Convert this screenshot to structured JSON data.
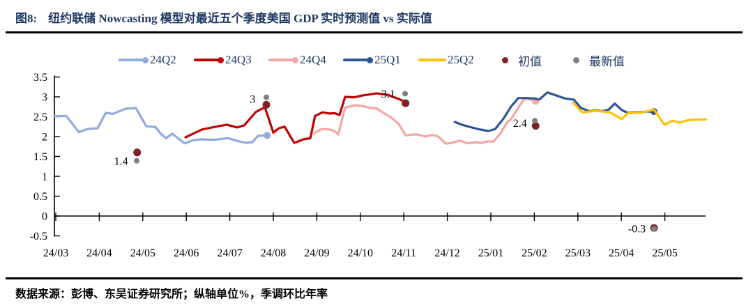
{
  "header": {
    "figure_label": "图8:",
    "title": "纽约联储 Nowcasting 模型对最近五个季度美国 GDP 实时预测值 vs 实际值"
  },
  "footer": {
    "source_note": "数据来源：彭博、东吴证券研究所；纵轴单位%，季调环比年率"
  },
  "legend": {
    "items": [
      {
        "label": "24Q2",
        "color": "#8FAADC",
        "type": "line-dot"
      },
      {
        "label": "24Q3",
        "color": "#C00000",
        "type": "line-dot"
      },
      {
        "label": "24Q4",
        "color": "#F5A6A2",
        "type": "line-dot"
      },
      {
        "label": "25Q1",
        "color": "#2E5597",
        "type": "line-dot"
      },
      {
        "label": "25Q2",
        "color": "#FFC000",
        "type": "line"
      },
      {
        "label": "初值",
        "color": "#7E2222",
        "type": "dot"
      },
      {
        "label": "最新值",
        "color": "#7F7F7F",
        "type": "dot"
      }
    ]
  },
  "chart_data": {
    "type": "line",
    "title": "纽约联储 Nowcasting 模型对最近五个季度美国 GDP 实时预测值 vs 实际值",
    "ylabel": "纵轴单位%，季调环比年率",
    "ylim": [
      -0.5,
      3.5
    ],
    "yticks": [
      3.5,
      3,
      2.5,
      2,
      1.5,
      1,
      0.5,
      0,
      -0.5
    ],
    "x_categories": [
      "24/03",
      "24/04",
      "24/05",
      "24/06",
      "24/07",
      "24/08",
      "24/09",
      "24/10",
      "24/11",
      "24/12",
      "25/01",
      "25/02",
      "25/03",
      "25/04",
      "25/05"
    ],
    "grid": false,
    "legend_position": "top",
    "series": [
      {
        "name": "24Q2",
        "color": "#8FAADC",
        "end_dot": true,
        "points": [
          [
            -0.03,
            2.51
          ],
          [
            0.24,
            2.52
          ],
          [
            0.53,
            2.11
          ],
          [
            0.72,
            2.19
          ],
          [
            0.96,
            2.21
          ],
          [
            1.15,
            2.6
          ],
          [
            1.31,
            2.57
          ],
          [
            1.6,
            2.7
          ],
          [
            1.84,
            2.72
          ],
          [
            2.08,
            2.26
          ],
          [
            2.29,
            2.24
          ],
          [
            2.4,
            2.09
          ],
          [
            2.53,
            1.96
          ],
          [
            2.68,
            2.07
          ],
          [
            2.96,
            1.83
          ],
          [
            3.16,
            1.91
          ],
          [
            3.32,
            1.93
          ],
          [
            3.64,
            1.92
          ],
          [
            3.8,
            1.94
          ],
          [
            3.96,
            1.96
          ],
          [
            4.21,
            1.88
          ],
          [
            4.38,
            1.84
          ],
          [
            4.52,
            1.86
          ],
          [
            4.65,
            2.02
          ],
          [
            4.86,
            2.03
          ]
        ]
      },
      {
        "name": "24Q4",
        "color": "#F5A6A2",
        "end_dot": true,
        "points": [
          [
            5.93,
            2.08
          ],
          [
            6.11,
            2.19
          ],
          [
            6.28,
            2.18
          ],
          [
            6.41,
            2.14
          ],
          [
            6.49,
            2.05
          ],
          [
            6.65,
            2.73
          ],
          [
            6.89,
            2.79
          ],
          [
            7.05,
            2.77
          ],
          [
            7.24,
            2.72
          ],
          [
            7.37,
            2.71
          ],
          [
            7.53,
            2.6
          ],
          [
            7.72,
            2.47
          ],
          [
            7.88,
            2.32
          ],
          [
            8.04,
            2.03
          ],
          [
            8.29,
            2.06
          ],
          [
            8.49,
            2.0
          ],
          [
            8.65,
            2.04
          ],
          [
            8.78,
            2.01
          ],
          [
            8.97,
            1.82
          ],
          [
            9.13,
            1.85
          ],
          [
            9.29,
            1.9
          ],
          [
            9.46,
            1.83
          ],
          [
            9.65,
            1.86
          ],
          [
            9.78,
            1.84
          ],
          [
            9.94,
            1.88
          ],
          [
            10.06,
            1.87
          ],
          [
            10.22,
            2.08
          ],
          [
            10.38,
            2.37
          ],
          [
            10.46,
            2.43
          ],
          [
            10.58,
            2.64
          ],
          [
            10.74,
            2.91
          ],
          [
            10.82,
            2.96
          ],
          [
            10.93,
            2.92
          ],
          [
            11.03,
            2.89
          ]
        ]
      },
      {
        "name": "24Q3",
        "color": "#C00000",
        "end_dot": false,
        "points": [
          [
            2.98,
            1.98
          ],
          [
            3.21,
            2.1
          ],
          [
            3.37,
            2.18
          ],
          [
            3.64,
            2.24
          ],
          [
            3.93,
            2.3
          ],
          [
            4.17,
            2.23
          ],
          [
            4.33,
            2.28
          ],
          [
            4.6,
            2.62
          ],
          [
            4.72,
            2.69
          ],
          [
            4.81,
            2.73
          ],
          [
            5.0,
            2.1
          ],
          [
            5.13,
            2.21
          ],
          [
            5.26,
            2.25
          ],
          [
            5.48,
            1.84
          ],
          [
            5.69,
            1.93
          ],
          [
            5.85,
            1.96
          ],
          [
            5.96,
            2.52
          ],
          [
            6.13,
            2.61
          ],
          [
            6.3,
            2.58
          ],
          [
            6.41,
            2.59
          ],
          [
            6.52,
            2.54
          ],
          [
            6.65,
            3.0
          ],
          [
            6.87,
            2.99
          ],
          [
            7.02,
            3.03
          ],
          [
            7.21,
            3.06
          ],
          [
            7.37,
            3.09
          ],
          [
            7.64,
            3.05
          ],
          [
            7.85,
            2.96
          ],
          [
            7.98,
            2.9
          ],
          [
            8.04,
            2.88
          ]
        ]
      },
      {
        "name": "25Q1",
        "color": "#2E5597",
        "end_dot": true,
        "points": [
          [
            9.17,
            2.37
          ],
          [
            9.33,
            2.3
          ],
          [
            9.46,
            2.26
          ],
          [
            9.7,
            2.19
          ],
          [
            9.94,
            2.14
          ],
          [
            10.1,
            2.19
          ],
          [
            10.29,
            2.45
          ],
          [
            10.46,
            2.75
          ],
          [
            10.63,
            2.97
          ],
          [
            10.82,
            2.97
          ],
          [
            11.01,
            2.96
          ],
          [
            11.11,
            2.93
          ],
          [
            11.3,
            3.11
          ],
          [
            11.49,
            3.04
          ],
          [
            11.7,
            2.96
          ],
          [
            11.91,
            2.93
          ],
          [
            12.07,
            2.72
          ],
          [
            12.26,
            2.64
          ],
          [
            12.42,
            2.66
          ],
          [
            12.58,
            2.64
          ],
          [
            12.71,
            2.68
          ],
          [
            12.85,
            2.83
          ],
          [
            13.01,
            2.67
          ],
          [
            13.14,
            2.6
          ],
          [
            13.3,
            2.61
          ],
          [
            13.46,
            2.61
          ],
          [
            13.59,
            2.63
          ],
          [
            13.75,
            2.63
          ]
        ]
      },
      {
        "name": "25Q2",
        "color": "#FFC000",
        "end_dot": false,
        "points": [
          [
            11.89,
            2.86
          ],
          [
            12.1,
            2.61
          ],
          [
            12.26,
            2.63
          ],
          [
            12.42,
            2.65
          ],
          [
            12.58,
            2.63
          ],
          [
            12.74,
            2.61
          ],
          [
            13.01,
            2.44
          ],
          [
            13.14,
            2.58
          ],
          [
            13.3,
            2.6
          ],
          [
            13.46,
            2.6
          ],
          [
            13.75,
            2.68
          ],
          [
            13.99,
            2.3
          ],
          [
            14.18,
            2.4
          ],
          [
            14.34,
            2.35
          ],
          [
            14.52,
            2.41
          ],
          [
            14.79,
            2.43
          ],
          [
            14.94,
            2.43
          ]
        ]
      }
    ],
    "markers": {
      "initial": {
        "name": "初值",
        "color": "#7E2222",
        "points": [
          [
            1.87,
            1.6
          ],
          [
            4.84,
            2.8
          ],
          [
            8.04,
            2.84
          ],
          [
            11.03,
            2.27
          ],
          [
            13.75,
            -0.3
          ]
        ]
      },
      "latest": {
        "name": "最新值",
        "color": "#7F7F7F",
        "points": [
          [
            1.86,
            1.39
          ],
          [
            4.84,
            2.99
          ],
          [
            8.03,
            3.08
          ],
          [
            11.01,
            2.4
          ],
          [
            13.75,
            -0.32
          ]
        ]
      }
    },
    "annotations": [
      {
        "text": "1.4",
        "anchor_month": 1.66,
        "value": 1.39
      },
      {
        "text": "3",
        "anchor_month": 4.59,
        "value": 2.95
      },
      {
        "text": "3.1",
        "anchor_month": 7.8,
        "value": 3.08
      },
      {
        "text": "2.4",
        "anchor_month": 10.83,
        "value": 2.34
      },
      {
        "text": "-0.3",
        "anchor_month": 13.56,
        "value": -0.32
      }
    ]
  }
}
